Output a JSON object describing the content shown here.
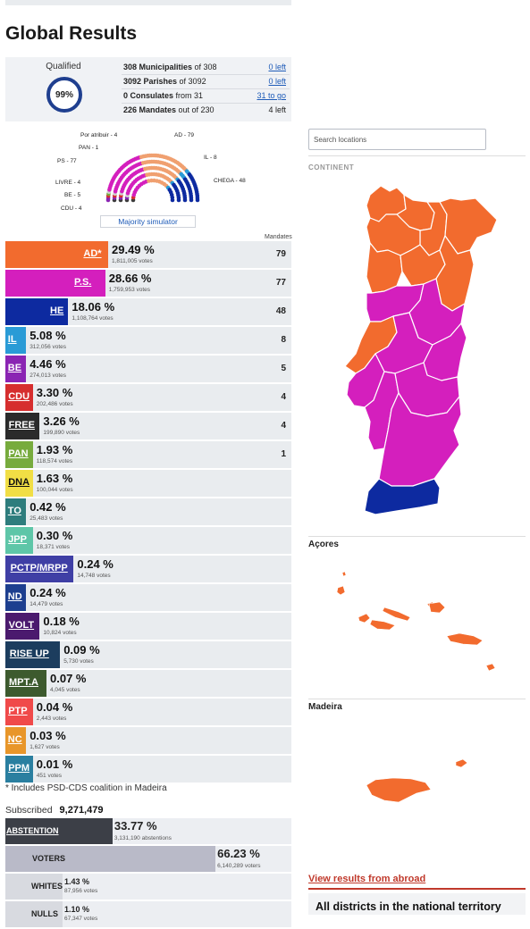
{
  "page_title": "Global Results",
  "summary": {
    "qualified_label": "Qualified",
    "qualified_pct": "99%",
    "rows": [
      {
        "bold": "308 Municipalities",
        "rest": " of 308",
        "right": "0 left",
        "link": true
      },
      {
        "bold": "3092 Parishes",
        "rest": " of 3092",
        "right": "0 left",
        "link": true
      },
      {
        "bold": "0 Consulates",
        "rest": " from 31",
        "right": "31 to go",
        "link": true
      },
      {
        "bold": "226 Mandates",
        "rest": " out of 230",
        "right": "4 left",
        "link": false
      }
    ]
  },
  "hemicycle": {
    "labels": {
      "por_atribuir": "Por atribuir - 4",
      "pan": "PAN - 1",
      "ps": "PS - 77",
      "livre": "LIVRE - 4",
      "be": "BE - 5",
      "cdu": "CDU - 4",
      "ad": "AD - 79",
      "il": "IL - 8",
      "chega": "CHEGA - 48"
    },
    "majority_button": "Majority simulator"
  },
  "mandates_header": "Mandates",
  "parties": [
    {
      "label": "AD*",
      "pct": "29.49 %",
      "votes": "1,811,005 votes",
      "mandates": "79",
      "color": "#f26b2e",
      "share": 29.49
    },
    {
      "label": "P.S.",
      "pct": "28.66 %",
      "votes": "1,759,953 votes",
      "mandates": "77",
      "color": "#d41fbd",
      "share": 28.66
    },
    {
      "label": "HE",
      "pct": "18.06 %",
      "votes": "1,108,764 votes",
      "mandates": "48",
      "color": "#0d2aa0",
      "share": 18.06
    },
    {
      "label": "IL",
      "pct": "5.08 %",
      "votes": "312,056 votes",
      "mandates": "8",
      "color": "#2a9bd6",
      "share": 5.08
    },
    {
      "label": "BE",
      "pct": "4.46 %",
      "votes": "274,013 votes",
      "mandates": "5",
      "color": "#8a24b3",
      "share": 4.46
    },
    {
      "label": "CDU",
      "pct": "3.30 %",
      "votes": "202,486 votes",
      "mandates": "4",
      "color": "#d62e2e",
      "share": 3.3
    },
    {
      "label": "FREE",
      "pct": "3.26 %",
      "votes": "199,890 votes",
      "mandates": "4",
      "color": "#2b2b2b",
      "share": 3.26
    },
    {
      "label": "PAN",
      "pct": "1.93 %",
      "votes": "118,574 votes",
      "mandates": "1",
      "color": "#77ab3d",
      "share": 1.93
    },
    {
      "label": "DNA",
      "pct": "1.63 %",
      "votes": "100,044 votes",
      "mandates": "",
      "color": "#f1de45",
      "share": 1.63,
      "dark": true
    },
    {
      "label": "TO",
      "pct": "0.42 %",
      "votes": "25,483 votes",
      "mandates": "",
      "color": "#2e7d7d",
      "share": 0.42
    },
    {
      "label": "JPP",
      "pct": "0.30 %",
      "votes": "18,371 votes",
      "mandates": "",
      "color": "#5ec6a8",
      "share": 0.3
    },
    {
      "label": "PCTP/MRPP",
      "pct": "0.24 %",
      "votes": "14,748 votes",
      "mandates": "",
      "color": "#3f3fa5",
      "share": 0.24
    },
    {
      "label": "ND",
      "pct": "0.24 %",
      "votes": "14,479 votes",
      "mandates": "",
      "color": "#1d3f8f",
      "share": 0.24
    },
    {
      "label": "VOLT",
      "pct": "0.18 %",
      "votes": "10,824 votes",
      "mandates": "",
      "color": "#4b1a6e",
      "share": 0.18
    },
    {
      "label": "RISE UP",
      "pct": "0.09 %",
      "votes": "5,730 votes",
      "mandates": "",
      "color": "#1c3d5e",
      "share": 0.09
    },
    {
      "label": "MPT.A",
      "pct": "0.07 %",
      "votes": "4,045 votes",
      "mandates": "",
      "color": "#3d5a2e",
      "share": 0.07
    },
    {
      "label": "PTP",
      "pct": "0.04 %",
      "votes": "2,443 votes",
      "mandates": "",
      "color": "#f04a4a",
      "share": 0.04
    },
    {
      "label": "NC",
      "pct": "0.03 %",
      "votes": "1,627 votes",
      "mandates": "",
      "color": "#e8962a",
      "share": 0.03
    },
    {
      "label": "PPM",
      "pct": "0.01 %",
      "votes": "451 votes",
      "mandates": "",
      "color": "#2a7fa0",
      "share": 0.01
    }
  ],
  "footnote": "* Includes PSD-CDS coalition in Madeira",
  "subscribed": {
    "label": "Subscribed",
    "value": "9,271,479"
  },
  "turnout": [
    {
      "label": "ABSTENTION",
      "pct": "33.77 %",
      "votes": "3,131,190 abstentions",
      "color": "#3c3f47",
      "share": 33.77,
      "labelColor": "#fff",
      "underline": true
    },
    {
      "label": "VOTERS",
      "pct": "66.23 %",
      "votes": "6,140,289 voters",
      "color": "#b9bac8",
      "share": 66.23,
      "labelColor": "#222",
      "underline": false
    },
    {
      "label": "WHITES",
      "pct": "1.43 %",
      "votes": "87,956 votes",
      "color": "#d8dae0",
      "share": 1.43,
      "labelColor": "#222",
      "underline": false
    },
    {
      "label": "NULLS",
      "pct": "1.10 %",
      "votes": "67,347 votes",
      "color": "#d8dae0",
      "share": 1.1,
      "labelColor": "#222",
      "underline": false
    }
  ],
  "map": {
    "search_placeholder": "Search locations",
    "continent": "CONTINENT",
    "acores": "Açores",
    "madeira": "Madeira",
    "abroad_link": "View results from abroad",
    "all_districts": "All districts in the national territory"
  }
}
